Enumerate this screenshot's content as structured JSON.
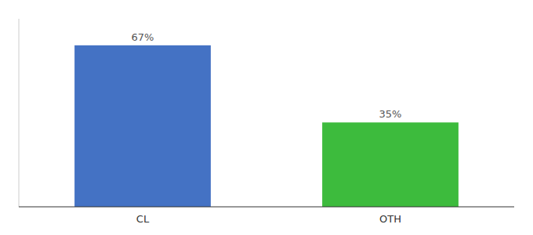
{
  "chart_data": {
    "type": "bar",
    "categories": [
      "CL",
      "OTH"
    ],
    "values": [
      67,
      35
    ],
    "value_labels": [
      "67%",
      "35%"
    ],
    "colors": [
      "#4472c4",
      "#3dbb3d"
    ],
    "ylim": [
      0,
      78
    ],
    "data_labels": true,
    "tick_labels": "x"
  }
}
